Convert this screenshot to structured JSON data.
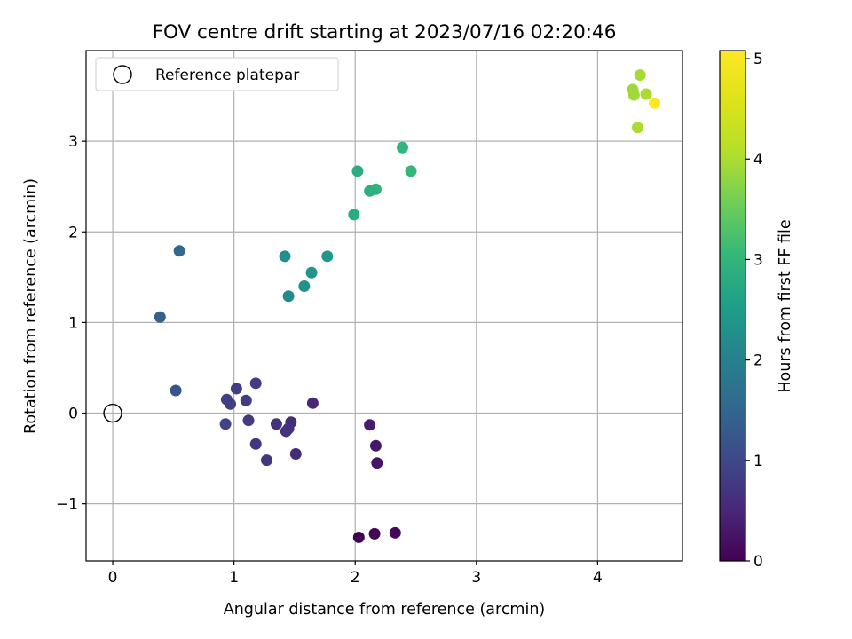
{
  "chart_data": {
    "type": "scatter",
    "title": "FOV centre drift starting at 2023/07/16 02:20:46",
    "xlabel": "Angular distance from reference (arcmin)",
    "ylabel": "Rotation from reference (arcmin)",
    "xlim": [
      -0.22,
      4.7
    ],
    "ylim": [
      -1.63,
      4.0
    ],
    "x_ticks": [
      "0",
      "1",
      "2",
      "3",
      "4"
    ],
    "x_tick_values": [
      0,
      1,
      2,
      3,
      4
    ],
    "y_ticks": [
      "−1",
      "0",
      "1",
      "2",
      "3"
    ],
    "y_tick_values": [
      -1,
      0,
      1,
      2,
      3
    ],
    "grid": true,
    "legend_position": "top-left",
    "legend": {
      "label": "Reference platepar"
    },
    "reference_point": {
      "x": 0,
      "y": 0
    },
    "colorbar": {
      "label": "Hours from first FF file",
      "range": [
        0,
        5.08
      ],
      "ticks": [
        "0",
        "1",
        "2",
        "3",
        "4",
        "5"
      ],
      "tick_values": [
        0,
        1,
        2,
        3,
        4,
        5
      ],
      "colormap": "viridis"
    },
    "points": [
      {
        "x": 2.03,
        "y": -1.37,
        "h": 0.0
      },
      {
        "x": 2.16,
        "y": -1.33,
        "h": 0.05
      },
      {
        "x": 2.33,
        "y": -1.32,
        "h": 0.1
      },
      {
        "x": 2.18,
        "y": -0.55,
        "h": 0.25
      },
      {
        "x": 2.17,
        "y": -0.36,
        "h": 0.3
      },
      {
        "x": 2.12,
        "y": -0.13,
        "h": 0.35
      },
      {
        "x": 1.65,
        "y": 0.11,
        "h": 0.5
      },
      {
        "x": 1.51,
        "y": -0.45,
        "h": 0.55
      },
      {
        "x": 1.47,
        "y": -0.1,
        "h": 0.6
      },
      {
        "x": 1.45,
        "y": -0.17,
        "h": 0.62
      },
      {
        "x": 1.43,
        "y": -0.2,
        "h": 0.65
      },
      {
        "x": 1.35,
        "y": -0.12,
        "h": 0.68
      },
      {
        "x": 1.27,
        "y": -0.52,
        "h": 0.72
      },
      {
        "x": 1.18,
        "y": -0.34,
        "h": 0.75
      },
      {
        "x": 1.12,
        "y": -0.08,
        "h": 0.78
      },
      {
        "x": 1.18,
        "y": 0.33,
        "h": 0.8
      },
      {
        "x": 1.1,
        "y": 0.14,
        "h": 0.82
      },
      {
        "x": 1.02,
        "y": 0.27,
        "h": 0.85
      },
      {
        "x": 0.97,
        "y": 0.1,
        "h": 0.88
      },
      {
        "x": 0.94,
        "y": 0.15,
        "h": 0.9
      },
      {
        "x": 0.93,
        "y": -0.12,
        "h": 0.92
      },
      {
        "x": 0.52,
        "y": 0.25,
        "h": 1.2
      },
      {
        "x": 0.39,
        "y": 1.06,
        "h": 1.4
      },
      {
        "x": 0.55,
        "y": 1.79,
        "h": 1.5
      },
      {
        "x": 1.45,
        "y": 1.29,
        "h": 2.2
      },
      {
        "x": 1.42,
        "y": 1.73,
        "h": 2.25
      },
      {
        "x": 1.58,
        "y": 1.4,
        "h": 2.3
      },
      {
        "x": 1.64,
        "y": 1.55,
        "h": 2.35
      },
      {
        "x": 1.77,
        "y": 1.73,
        "h": 2.4
      },
      {
        "x": 1.99,
        "y": 2.19,
        "h": 2.8
      },
      {
        "x": 2.02,
        "y": 2.67,
        "h": 2.85
      },
      {
        "x": 2.12,
        "y": 2.45,
        "h": 2.9
      },
      {
        "x": 2.17,
        "y": 2.47,
        "h": 2.95
      },
      {
        "x": 2.39,
        "y": 2.93,
        "h": 3.0
      },
      {
        "x": 2.46,
        "y": 2.67,
        "h": 3.05
      },
      {
        "x": 4.29,
        "y": 3.57,
        "h": 3.9
      },
      {
        "x": 4.3,
        "y": 3.51,
        "h": 3.92
      },
      {
        "x": 4.35,
        "y": 3.73,
        "h": 3.95
      },
      {
        "x": 4.4,
        "y": 3.52,
        "h": 3.98
      },
      {
        "x": 4.33,
        "y": 3.15,
        "h": 4.0
      },
      {
        "x": 4.47,
        "y": 3.42,
        "h": 5.08
      }
    ]
  }
}
